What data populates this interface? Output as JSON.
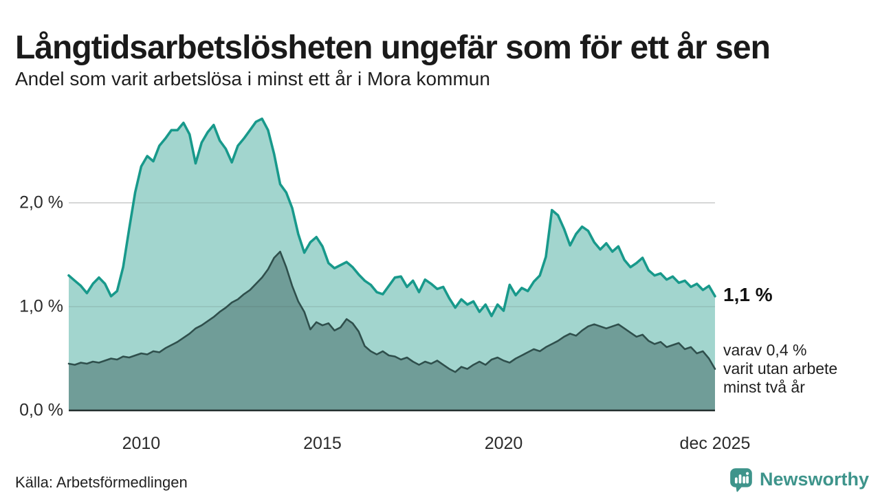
{
  "header": {
    "title": "Långtidsarbetslösheten ungefär som för ett år sen",
    "subtitle": "Andel som varit arbetslösa i minst ett år i Mora kommun"
  },
  "chart_data": {
    "type": "area",
    "title": "Andel som varit arbetslösa i minst ett år i Mora kommun",
    "unit": "%",
    "grid": "horizontal",
    "legend": "none",
    "x_start_year": 2008,
    "x_step_months": 2,
    "ylim": [
      0,
      2.9
    ],
    "gridline_color": "#e2e2e2",
    "axis_color": "#222f2e",
    "y_axis_ticks": [
      {
        "label": "0,0 %",
        "value": 0.0
      },
      {
        "label": "1,0 %",
        "value": 1.0
      },
      {
        "label": "2,0 %",
        "value": 2.0
      }
    ],
    "x_axis_ticks": [
      {
        "label": "2010",
        "year": 2010
      },
      {
        "label": "2015",
        "year": 2015
      },
      {
        "label": "2020",
        "year": 2020
      },
      {
        "label": "dec 2025",
        "year": 2025.8333
      }
    ],
    "series": [
      {
        "name": "Andel arbetslösa i minst ett år",
        "line_color": "#18998b",
        "fill_color": "#a2d5ce",
        "latest_value": 1.1,
        "values": [
          1.3,
          1.25,
          1.2,
          1.13,
          1.22,
          1.28,
          1.22,
          1.1,
          1.15,
          1.38,
          1.75,
          2.1,
          2.35,
          2.45,
          2.4,
          2.55,
          2.62,
          2.7,
          2.7,
          2.77,
          2.66,
          2.38,
          2.58,
          2.68,
          2.75,
          2.6,
          2.52,
          2.39,
          2.55,
          2.62,
          2.7,
          2.78,
          2.81,
          2.7,
          2.47,
          2.18,
          2.1,
          1.95,
          1.7,
          1.52,
          1.62,
          1.67,
          1.58,
          1.42,
          1.37,
          1.4,
          1.43,
          1.38,
          1.31,
          1.25,
          1.21,
          1.14,
          1.12,
          1.2,
          1.28,
          1.29,
          1.19,
          1.25,
          1.14,
          1.26,
          1.22,
          1.17,
          1.19,
          1.08,
          0.99,
          1.07,
          1.02,
          1.05,
          0.95,
          1.02,
          0.91,
          1.02,
          0.96,
          1.21,
          1.11,
          1.18,
          1.15,
          1.24,
          1.3,
          1.48,
          1.93,
          1.88,
          1.75,
          1.59,
          1.7,
          1.77,
          1.73,
          1.62,
          1.55,
          1.61,
          1.53,
          1.58,
          1.45,
          1.38,
          1.42,
          1.47,
          1.35,
          1.3,
          1.32,
          1.26,
          1.29,
          1.23,
          1.25,
          1.19,
          1.22,
          1.16,
          1.2,
          1.1
        ]
      },
      {
        "name": "Andel arbetslösa i minst två år",
        "line_color": "#2f4f4c",
        "fill_color": "#709d98",
        "latest_value": 0.4,
        "values": [
          0.45,
          0.44,
          0.46,
          0.45,
          0.47,
          0.46,
          0.48,
          0.5,
          0.49,
          0.52,
          0.51,
          0.53,
          0.55,
          0.54,
          0.57,
          0.56,
          0.6,
          0.63,
          0.66,
          0.7,
          0.74,
          0.79,
          0.82,
          0.86,
          0.9,
          0.95,
          0.99,
          1.04,
          1.07,
          1.12,
          1.16,
          1.22,
          1.28,
          1.36,
          1.47,
          1.53,
          1.38,
          1.2,
          1.05,
          0.95,
          0.78,
          0.85,
          0.82,
          0.84,
          0.77,
          0.8,
          0.88,
          0.84,
          0.76,
          0.62,
          0.57,
          0.54,
          0.57,
          0.53,
          0.52,
          0.49,
          0.51,
          0.47,
          0.44,
          0.47,
          0.45,
          0.48,
          0.44,
          0.4,
          0.37,
          0.42,
          0.4,
          0.44,
          0.47,
          0.44,
          0.49,
          0.51,
          0.48,
          0.46,
          0.5,
          0.53,
          0.56,
          0.59,
          0.57,
          0.61,
          0.64,
          0.67,
          0.71,
          0.74,
          0.72,
          0.77,
          0.81,
          0.83,
          0.81,
          0.79,
          0.81,
          0.83,
          0.79,
          0.75,
          0.71,
          0.73,
          0.67,
          0.64,
          0.66,
          0.61,
          0.63,
          0.65,
          0.59,
          0.61,
          0.55,
          0.57,
          0.5,
          0.4
        ]
      }
    ],
    "annotations": {
      "latest_value_label": "1,1 %",
      "secondary_label_lines": [
        "varav 0,4 %",
        "varit utan arbete",
        "minst två år"
      ]
    }
  },
  "footer": {
    "source": "Källa: Arbetsförmedlingen",
    "brand_name": "Newsworthy",
    "brand_color": "#3e948b",
    "brand_icon": "bar-chart-pin-icon"
  }
}
